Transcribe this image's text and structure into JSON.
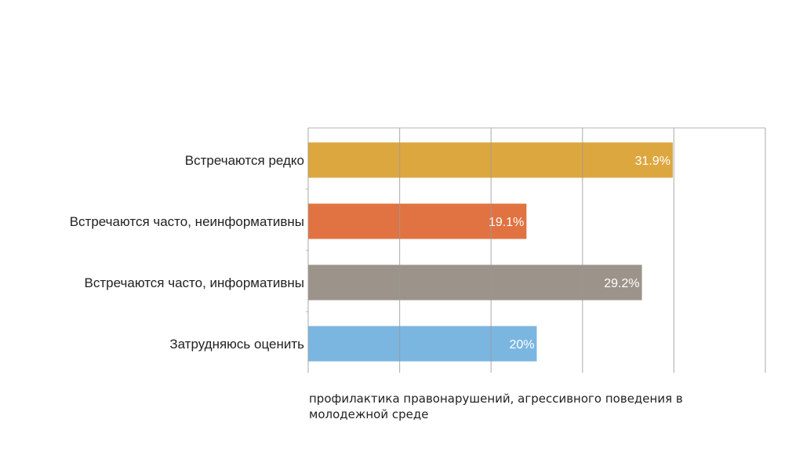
{
  "chart_data": {
    "type": "bar",
    "orientation": "horizontal",
    "categories": [
      "Встречаются редко",
      "Встречаются часто, неинформативны",
      "Встречаются часто, информативны",
      "Затрудняюсь оценить"
    ],
    "values": [
      31.9,
      19.1,
      29.2,
      20
    ],
    "value_labels": [
      "31.9%",
      "19.1%",
      "29.2%",
      "20%"
    ],
    "colors": [
      "#dba236",
      "#de6b37",
      "#978d84",
      "#74b2df"
    ],
    "xlabel": "профилактика правонарушений, агрессивного поведения в молодежной среде",
    "xlim": [
      0,
      40
    ],
    "xticks": [
      0,
      8,
      16,
      24,
      32,
      40
    ],
    "grid": true,
    "legend": "none"
  }
}
